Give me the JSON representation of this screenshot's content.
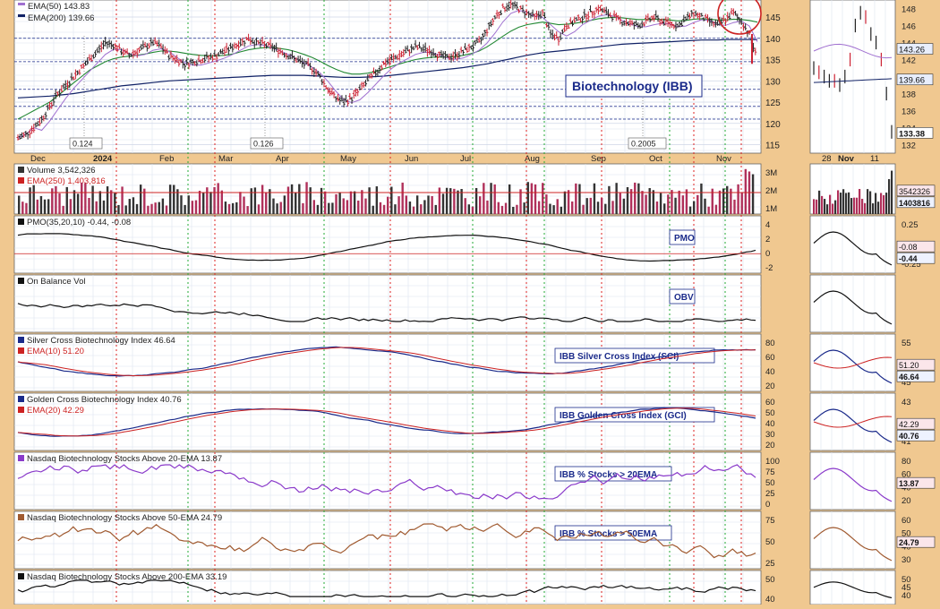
{
  "chart_data": {
    "type": "line",
    "title": "Biotechnology (IBB)",
    "x_months": [
      "Dec",
      "2024",
      "Feb",
      "Mar",
      "Apr",
      "May",
      "Jun",
      "Jul",
      "Aug",
      "Sep",
      "Oct",
      "Nov"
    ],
    "x_months_zoom": [
      "28",
      "Nov",
      "11"
    ],
    "price_panel": {
      "legend": [
        "EMA(50) 143.83",
        "EMA(200) 139.66"
      ],
      "yticks": [
        "145",
        "140",
        "135",
        "130",
        "125",
        "120",
        "115"
      ],
      "ylim": [
        113,
        149
      ],
      "dividend_labels": [
        "0.124",
        "0.126",
        "0.2005"
      ],
      "zoom_yticks": [
        "148",
        "146",
        "144",
        "142",
        "140",
        "138",
        "136",
        "134",
        "132"
      ],
      "zoom_badges": [
        "143.26",
        "139.66",
        "133.38"
      ],
      "series_close": [
        116.5,
        117.5,
        119,
        121,
        124,
        127,
        129,
        131,
        133,
        135,
        137,
        139,
        138.5,
        137,
        136,
        137,
        138,
        139,
        138,
        136,
        135,
        134,
        134.5,
        135,
        135.5,
        136,
        137,
        138,
        139,
        140,
        139,
        138.5,
        138,
        137,
        136,
        135,
        134,
        133,
        131,
        128,
        126,
        125,
        126,
        128,
        130,
        132,
        134,
        135,
        136,
        137,
        138,
        137.5,
        137,
        136,
        135.5,
        136,
        137,
        138,
        139,
        142,
        145,
        147,
        148,
        147,
        146,
        145,
        146,
        141,
        140,
        143,
        144,
        145,
        146,
        147,
        146,
        145,
        144,
        143.5,
        143,
        144,
        145,
        144,
        143.5,
        143,
        144.5,
        146,
        145,
        144,
        143,
        144.5,
        146,
        144,
        141,
        135
      ],
      "series_ema50": [
        121,
        122,
        123,
        124,
        125,
        126.5,
        128,
        129.5,
        131,
        132.5,
        133.5,
        134.5,
        135.2,
        135.6,
        135.8,
        136,
        136.3,
        136.7,
        137,
        137,
        136.8,
        136.5,
        136.2,
        136,
        135.9,
        135.9,
        136,
        136.3,
        136.8,
        137.3,
        137.6,
        137.8,
        137.8,
        137.6,
        137.3,
        136.8,
        136.2,
        135.5,
        134.6,
        133.6,
        132.7,
        132,
        131.6,
        131.6,
        131.8,
        132.2,
        132.8,
        133.4,
        134,
        134.5,
        135,
        135.3,
        135.5,
        135.6,
        135.6,
        135.7,
        136,
        136.4,
        137,
        138,
        139.2,
        140.5,
        141.7,
        142.6,
        143.2,
        143.5,
        143.8,
        143.5,
        143.2,
        143.3,
        143.5,
        143.8,
        144.2,
        144.6,
        144.8,
        144.9,
        144.8,
        144.6,
        144.4,
        144.4,
        144.5,
        144.4,
        144.3,
        144.1,
        144.2,
        144.5,
        144.6,
        144.5,
        144.3,
        144.3,
        144.5,
        144.4,
        144.2,
        143.8
      ],
      "series_ema200": [
        126,
        126.1,
        126.2,
        126.3,
        126.4,
        126.6,
        126.8,
        127,
        127.3,
        127.6,
        127.9,
        128.2,
        128.5,
        128.8,
        129,
        129.2,
        129.4,
        129.6,
        129.8,
        130,
        130.1,
        130.2,
        130.3,
        130.4,
        130.5,
        130.6,
        130.7,
        130.8,
        130.9,
        131,
        131.1,
        131.2,
        131.3,
        131.3,
        131.3,
        131.3,
        131.3,
        131.2,
        131.1,
        131,
        130.9,
        130.8,
        130.8,
        130.8,
        130.9,
        131,
        131.1,
        131.3,
        131.5,
        131.7,
        131.9,
        132.1,
        132.3,
        132.5,
        132.7,
        132.9,
        133.1,
        133.4,
        133.7,
        134,
        134.4,
        134.8,
        135.2,
        135.6,
        136,
        136.3,
        136.6,
        136.8,
        137,
        137.2,
        137.4,
        137.6,
        137.8,
        138,
        138.2,
        138.4,
        138.6,
        138.7,
        138.8,
        138.9,
        139,
        139.1,
        139.2,
        139.3,
        139.4,
        139.5,
        139.6,
        139.6,
        139.6,
        139.7,
        139.7,
        139.7,
        139.7,
        139.66
      ]
    },
    "panels": [
      {
        "key": "volume",
        "legend": [
          "Volume 3,542,326",
          "EMA(250) 1,403,816"
        ],
        "label": "",
        "yticks": [
          "3M",
          "2M",
          "1M"
        ],
        "zoom_ticks": [
          "",
          "",
          ""
        ],
        "zoom_badges": [
          "3542326",
          "1403816"
        ]
      },
      {
        "key": "pmo",
        "legend": [
          "PMO(35,20,10) -0.44, -0.08"
        ],
        "label": "PMO",
        "yticks": [
          "4",
          "2",
          "0",
          "-2"
        ],
        "zoom_ticks": [
          "0.25",
          "0.00",
          "-0.25"
        ],
        "zoom_badges": [
          "-0.08",
          "-0.44"
        ]
      },
      {
        "key": "obv",
        "legend": [
          "On Balance Vol"
        ],
        "label": "OBV",
        "yticks": [],
        "zoom_ticks": [],
        "zoom_badges": []
      },
      {
        "key": "sci",
        "legend": [
          "Silver Cross Biotechnology Index 46.64",
          "EMA(10) 51.20"
        ],
        "label": "IBB Silver Cross Index (SCI)",
        "yticks": [
          "80",
          "60",
          "40",
          "20"
        ],
        "zoom_ticks": [
          "55",
          "50",
          "45"
        ],
        "zoom_badges": [
          "51.20",
          "46.64"
        ]
      },
      {
        "key": "gci",
        "legend": [
          "Golden Cross Biotechnology Index 40.76",
          "EMA(20) 42.29"
        ],
        "label": "IBB Golden Cross Index (GCI)",
        "yticks": [
          "60",
          "50",
          "40",
          "30",
          "20"
        ],
        "zoom_ticks": [
          "43",
          "42",
          "41"
        ],
        "zoom_badges": [
          "42.29",
          "40.76"
        ]
      },
      {
        "key": "pct20",
        "legend": [
          "Nasdaq Biotechnology Stocks Above 20-EMA 13.87"
        ],
        "label": "IBB % Stocks > 20EMA",
        "yticks": [
          "100",
          "75",
          "50",
          "25",
          "0"
        ],
        "zoom_ticks": [
          "80",
          "60",
          "40",
          "20"
        ],
        "zoom_badges": [
          "13.87"
        ]
      },
      {
        "key": "pct50",
        "legend": [
          "Nasdaq Biotechnology Stocks Above 50-EMA 24.79"
        ],
        "label": "IBB % Stocks > 50EMA",
        "yticks": [
          "75",
          "50",
          "25"
        ],
        "zoom_ticks": [
          "60",
          "50",
          "40",
          "30"
        ],
        "zoom_badges": [
          "24.79"
        ]
      },
      {
        "key": "pct200",
        "legend": [
          "Nasdaq Biotechnology Stocks Above 200-EMA 33.19"
        ],
        "label": "",
        "yticks": [
          "50",
          "40"
        ],
        "zoom_ticks": [
          "50",
          "45",
          "40"
        ],
        "zoom_badges": []
      }
    ],
    "colors": {
      "price_up": "#222222",
      "price_down": "#cc2233",
      "ema50": "#228833",
      "ema200": "#112266",
      "volume_up": "#333333",
      "volume_down": "#b0305a",
      "red_line": "#cc2222",
      "blue_line": "#1a2a8a",
      "purple_line": "#8a3aca",
      "brown_line": "#a05a30",
      "frame_bg": "#f0c890"
    }
  }
}
